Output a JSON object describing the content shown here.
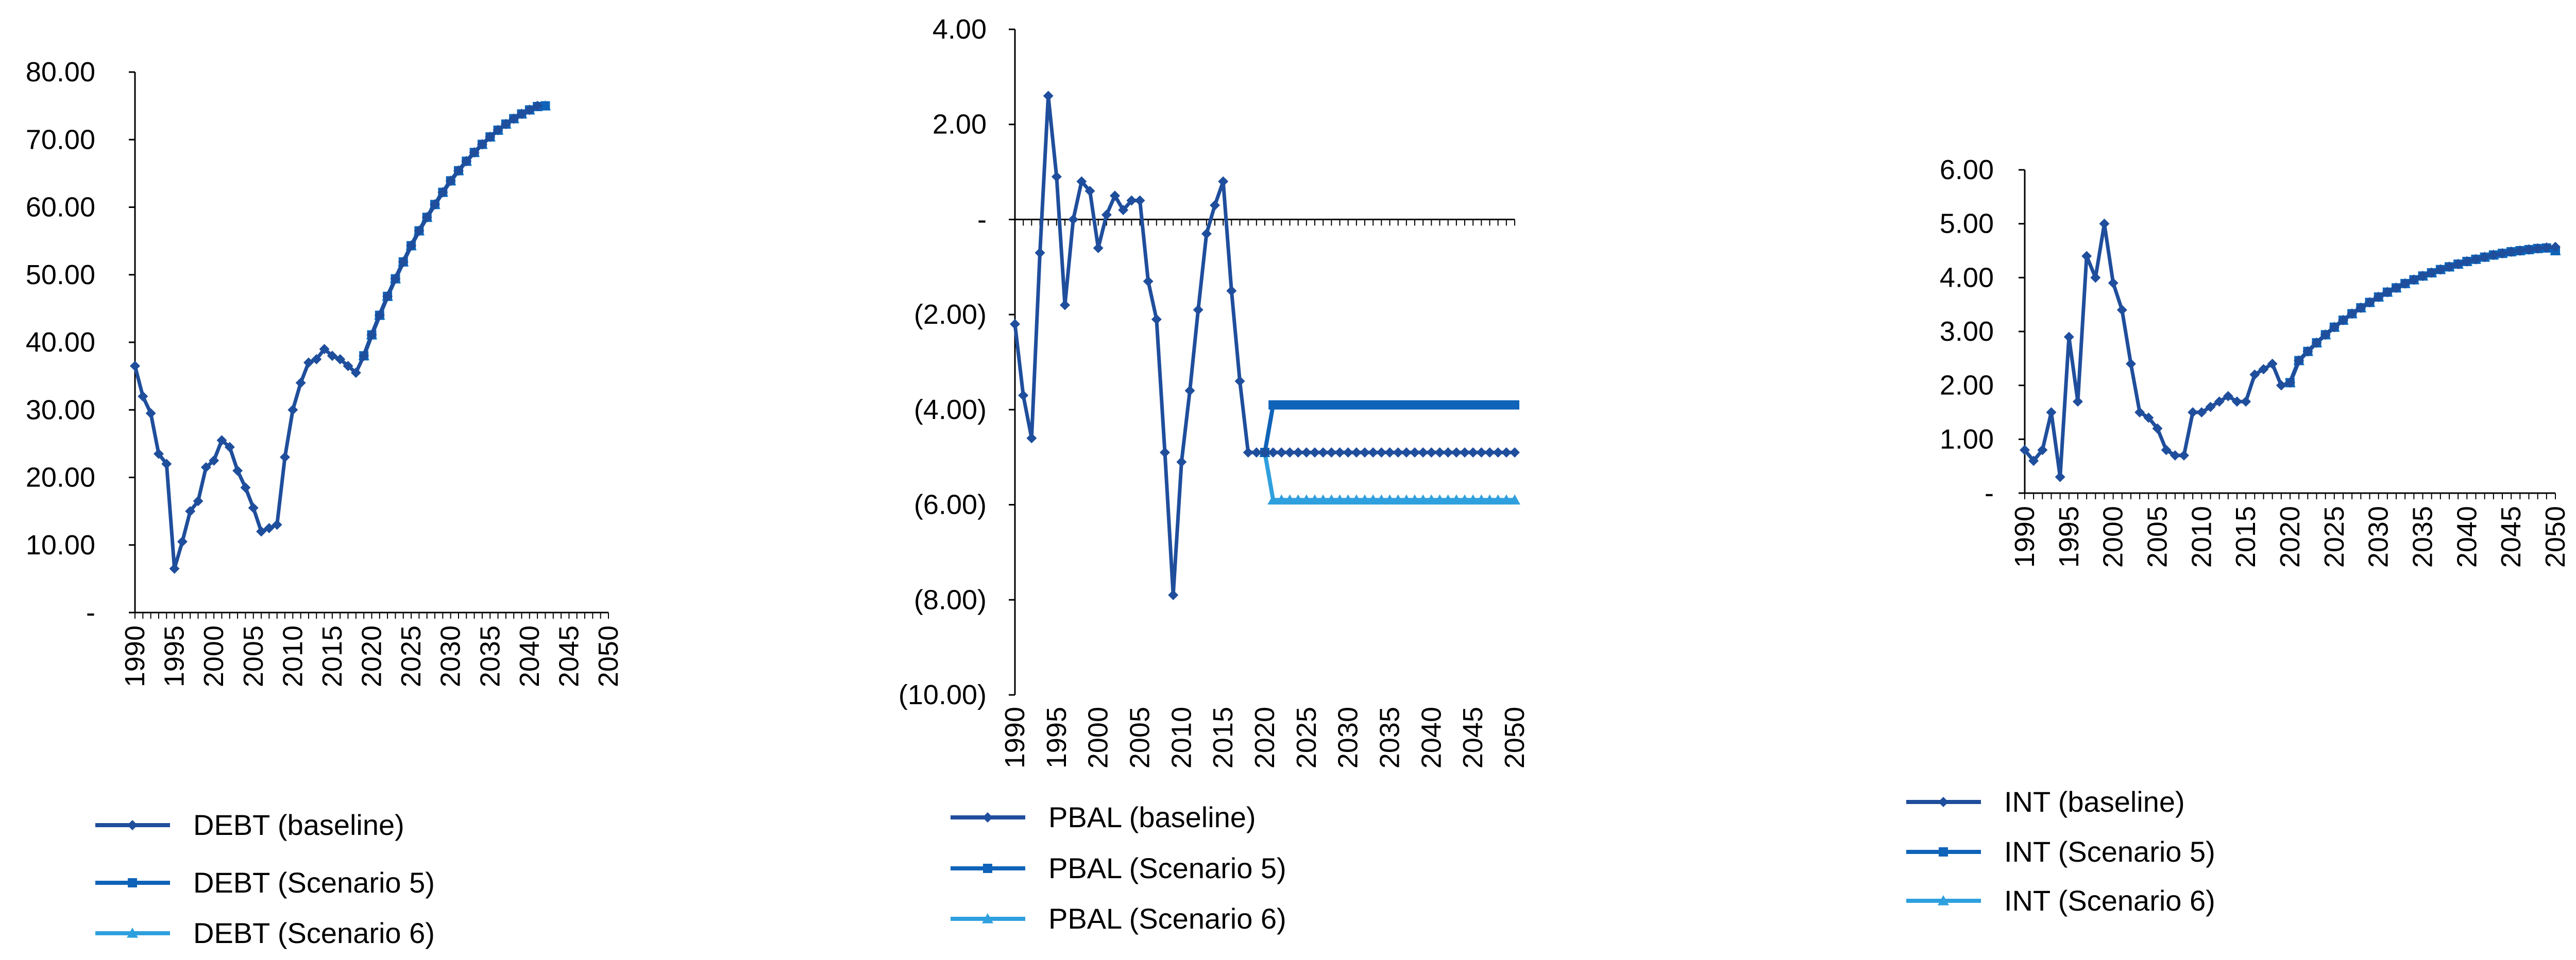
{
  "colors": {
    "baseline": "#1f4e9c",
    "scenario5": "#0f63b8",
    "scenario6": "#2fa0de",
    "axis": "#000000"
  },
  "chart_data": [
    {
      "id": "debt",
      "type": "line",
      "title": "",
      "xlabel": "",
      "ylabel": "",
      "ylim": [
        0,
        80
      ],
      "ytick_values": [
        0,
        10,
        20,
        30,
        40,
        50,
        60,
        70,
        80
      ],
      "ytick_labels": [
        "-",
        "10.00",
        "20.00",
        "30.00",
        "40.00",
        "50.00",
        "60.00",
        "70.00",
        "80.00"
      ],
      "xlim": [
        1990,
        2050
      ],
      "xtick_labels": [
        "1990",
        "1995",
        "2000",
        "2005",
        "2010",
        "2015",
        "2020",
        "2025",
        "2030",
        "2035",
        "2040",
        "2045",
        "2050"
      ],
      "series": [
        {
          "name": "DEBT (baseline)",
          "marker": "diamond",
          "color_key": "baseline",
          "x_start": 1990,
          "values": [
            36.5,
            32,
            29.5,
            23.5,
            22,
            6.5,
            10.5,
            15,
            16.5,
            21.5,
            22.5,
            25.5,
            24.5,
            21,
            18.5,
            15.5,
            12,
            12.5,
            13,
            23,
            30,
            34,
            37,
            37.5,
            39,
            38,
            37.5,
            36.5,
            35.5,
            38.0,
            41.1,
            44.0,
            46.8,
            49.4,
            51.9,
            54.3,
            56.5,
            58.5,
            60.4,
            62.2,
            63.9,
            65.4,
            66.8,
            68.1,
            69.3,
            70.4,
            71.4,
            72.3,
            73.1,
            73.8,
            74.4,
            75.0
          ]
        },
        {
          "name": "DEBT (Scenario 5)",
          "marker": "square",
          "color_key": "scenario5",
          "x_start": 2019,
          "values": [
            38.0,
            41.1,
            44.0,
            46.8,
            49.4,
            51.9,
            54.3,
            56.5,
            58.5,
            60.4,
            62.2,
            63.9,
            65.4,
            66.8,
            68.1,
            69.3,
            70.4,
            71.4,
            72.3,
            73.1,
            73.8,
            74.4,
            74.9,
            75.0
          ]
        },
        {
          "name": "DEBT (Scenario 6)",
          "marker": "triangle",
          "color_key": "scenario6",
          "x_start": 2019,
          "values": [
            38.0,
            41.1,
            44.0,
            46.8,
            49.4,
            51.9,
            54.3,
            56.5,
            58.5,
            60.4,
            62.2,
            63.9,
            65.4,
            66.8,
            68.1,
            69.3,
            70.4,
            71.4,
            72.3,
            73.1,
            73.8,
            74.4,
            74.9,
            75.0
          ]
        }
      ],
      "legend": [
        "DEBT (baseline)",
        "DEBT (Scenario 5)",
        "DEBT (Scenario 6)"
      ]
    },
    {
      "id": "pbal",
      "type": "line",
      "title": "",
      "xlabel": "",
      "ylabel": "",
      "ylim": [
        -10,
        4
      ],
      "ytick_values": [
        4,
        2,
        0,
        -2,
        -4,
        -6,
        -8,
        -10
      ],
      "ytick_labels": [
        "4.00",
        "2.00",
        "-",
        "(2.00)",
        "(4.00)",
        "(6.00)",
        "(8.00)",
        "(10.00)"
      ],
      "xlim": [
        1990,
        2050
      ],
      "xtick_labels": [
        "1990",
        "1995",
        "2000",
        "2005",
        "2010",
        "2015",
        "2020",
        "2025",
        "2030",
        "2035",
        "2040",
        "2045",
        "2050"
      ],
      "series": [
        {
          "name": "PBAL (baseline)",
          "marker": "diamond",
          "color_key": "baseline",
          "x_start": 1990,
          "values": [
            -2.2,
            -3.7,
            -4.6,
            -0.7,
            2.6,
            0.9,
            -1.8,
            0,
            0.8,
            0.6,
            -0.6,
            0.1,
            0.5,
            0.2,
            0.4,
            0.4,
            -1.3,
            -2.1,
            -4.9,
            -7.9,
            -5.1,
            -3.6,
            -1.9,
            -0.3,
            0.3,
            0.8,
            -1.5,
            -3.4,
            -4.9,
            -4.9,
            -4.9,
            -4.9,
            -4.9,
            -4.9,
            -4.9,
            -4.9,
            -4.9,
            -4.9,
            -4.9,
            -4.9,
            -4.9,
            -4.9,
            -4.9,
            -4.9,
            -4.9,
            -4.9,
            -4.9,
            -4.9,
            -4.9,
            -4.9,
            -4.9,
            -4.9,
            -4.9,
            -4.9,
            -4.9,
            -4.9,
            -4.9,
            -4.9,
            -4.9,
            -4.9,
            -4.9
          ]
        },
        {
          "name": "PBAL (Scenario 5)",
          "marker": "square",
          "color_key": "scenario5",
          "x_start": 2020,
          "values": [
            -4.9,
            -3.9,
            -3.9,
            -3.9,
            -3.9,
            -3.9,
            -3.9,
            -3.9,
            -3.9,
            -3.9,
            -3.9,
            -3.9,
            -3.9,
            -3.9,
            -3.9,
            -3.9,
            -3.9,
            -3.9,
            -3.9,
            -3.9,
            -3.9,
            -3.9,
            -3.9,
            -3.9,
            -3.9,
            -3.9,
            -3.9,
            -3.9,
            -3.9,
            -3.9,
            -3.9
          ]
        },
        {
          "name": "PBAL (Scenario 6)",
          "marker": "triangle",
          "color_key": "scenario6",
          "x_start": 2020,
          "values": [
            -4.9,
            -5.9,
            -5.9,
            -5.9,
            -5.9,
            -5.9,
            -5.9,
            -5.9,
            -5.9,
            -5.9,
            -5.9,
            -5.9,
            -5.9,
            -5.9,
            -5.9,
            -5.9,
            -5.9,
            -5.9,
            -5.9,
            -5.9,
            -5.9,
            -5.9,
            -5.9,
            -5.9,
            -5.9,
            -5.9,
            -5.9,
            -5.9,
            -5.9,
            -5.9,
            -5.9
          ]
        }
      ],
      "legend": [
        "PBAL (baseline)",
        "PBAL (Scenario 5)",
        "PBAL (Scenario 6)"
      ]
    },
    {
      "id": "int",
      "type": "line",
      "title": "",
      "xlabel": "",
      "ylabel": "",
      "ylim": [
        0,
        6
      ],
      "ytick_values": [
        0,
        1,
        2,
        3,
        4,
        5,
        6
      ],
      "ytick_labels": [
        "-",
        "1.00",
        "2.00",
        "3.00",
        "4.00",
        "5.00",
        "6.00"
      ],
      "xlim": [
        1990,
        2050
      ],
      "xtick_labels": [
        "1990",
        "1995",
        "2000",
        "2005",
        "2010",
        "2015",
        "2020",
        "2025",
        "2030",
        "2035",
        "2040",
        "2045",
        "2050"
      ],
      "series": [
        {
          "name": "INT (baseline)",
          "marker": "diamond",
          "color_key": "baseline",
          "x_start": 1990,
          "values": [
            0.8,
            0.6,
            0.8,
            1.5,
            0.3,
            2.9,
            1.7,
            4.4,
            4.0,
            5.0,
            3.9,
            3.4,
            2.4,
            1.5,
            1.4,
            1.2,
            0.8,
            0.7,
            0.7,
            1.5,
            1.5,
            1.6,
            1.7,
            1.8,
            1.7,
            1.7,
            2.2,
            2.3,
            2.4,
            2.0,
            2.05,
            2.46,
            2.63,
            2.79,
            2.94,
            3.08,
            3.21,
            3.33,
            3.44,
            3.54,
            3.64,
            3.73,
            3.81,
            3.89,
            3.96,
            4.03,
            4.09,
            4.15,
            4.2,
            4.25,
            4.3,
            4.34,
            4.38,
            4.42,
            4.45,
            4.48,
            4.5,
            4.52,
            4.54,
            4.56,
            4.57
          ]
        },
        {
          "name": "INT (Scenario 5)",
          "marker": "square",
          "color_key": "scenario5",
          "x_start": 2020,
          "values": [
            2.05,
            2.46,
            2.63,
            2.79,
            2.94,
            3.08,
            3.21,
            3.33,
            3.44,
            3.54,
            3.64,
            3.73,
            3.81,
            3.89,
            3.96,
            4.03,
            4.09,
            4.15,
            4.2,
            4.25,
            4.3,
            4.34,
            4.38,
            4.42,
            4.45,
            4.48,
            4.5,
            4.52,
            4.54,
            4.55,
            4.5
          ]
        },
        {
          "name": "INT (Scenario 6)",
          "marker": "triangle",
          "color_key": "scenario6",
          "x_start": 2020,
          "values": [
            2.05,
            2.46,
            2.63,
            2.79,
            2.94,
            3.08,
            3.21,
            3.33,
            3.44,
            3.54,
            3.64,
            3.73,
            3.81,
            3.89,
            3.96,
            4.03,
            4.09,
            4.15,
            4.2,
            4.25,
            4.3,
            4.34,
            4.38,
            4.42,
            4.45,
            4.48,
            4.5,
            4.52,
            4.54,
            4.55,
            4.5
          ]
        }
      ],
      "legend": [
        "INT (baseline)",
        "INT (Scenario 5)",
        "INT (Scenario 6)"
      ]
    }
  ]
}
